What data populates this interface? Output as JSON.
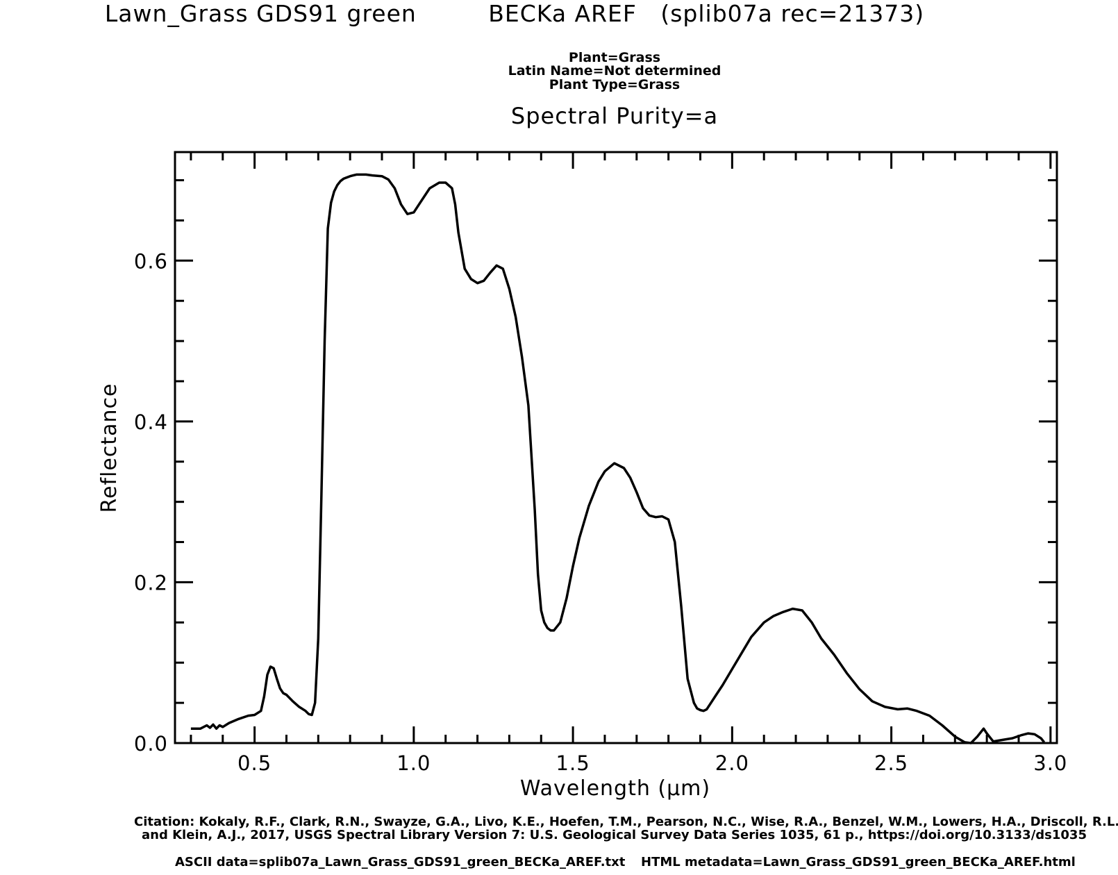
{
  "header": {
    "title": "Lawn_Grass GDS91 green         BECKa AREF   (splib07a rec=21373)",
    "plant": "Plant=Grass",
    "latin_name": "Latin Name=Not determined",
    "plant_type": "Plant Type=Grass",
    "purity": "Spectral Purity=a"
  },
  "footer": {
    "citation_line1": "Citation: Kokaly, R.F., Clark, R.N., Swayze, G.A., Livo, K.E., Hoefen, T.M., Pearson, N.C., Wise, R.A., Benzel, W.M., Lowers, H.A., Driscoll, R.L.,",
    "citation_line2": "and Klein, A.J., 2017, USGS Spectral Library Version 7: U.S. Geological Survey Data Series 1035, 61 p., https://doi.org/10.3133/ds1035",
    "ascii": "ASCII data=splib07a_Lawn_Grass_GDS91_green_BECKa_AREF.txt",
    "html_meta": "HTML metadata=Lawn_Grass_GDS91_green_BECKa_AREF.html"
  },
  "chart_data": {
    "type": "line",
    "xlabel": "Wavelength (μm)",
    "ylabel": "Reflectance",
    "xlim": [
      0.25,
      3.02
    ],
    "ylim": [
      0.0,
      0.735
    ],
    "xticks": [
      0.5,
      1.0,
      1.5,
      2.0,
      2.5,
      3.0
    ],
    "xtick_labels": [
      "0.5",
      "1.0",
      "1.5",
      "2.0",
      "2.5",
      "3.0"
    ],
    "yticks": [
      0.0,
      0.2,
      0.4,
      0.6
    ],
    "ytick_labels": [
      "0.0",
      "0.2",
      "0.4",
      "0.6"
    ],
    "grid": false,
    "line_color": "#000000",
    "series": [
      {
        "x": [
          0.3,
          0.33,
          0.35,
          0.36,
          0.37,
          0.38,
          0.39,
          0.4,
          0.42,
          0.45,
          0.48,
          0.5,
          0.52,
          0.53,
          0.54,
          0.55,
          0.56,
          0.57,
          0.58,
          0.59,
          0.6,
          0.62,
          0.64,
          0.66,
          0.67,
          0.68,
          0.69,
          0.7,
          0.71,
          0.72,
          0.73,
          0.74,
          0.75,
          0.76,
          0.77,
          0.78,
          0.8,
          0.82,
          0.85,
          0.87,
          0.9,
          0.92,
          0.94,
          0.96,
          0.98,
          1.0,
          1.02,
          1.05,
          1.08,
          1.1,
          1.12,
          1.13,
          1.14,
          1.16,
          1.18,
          1.2,
          1.22,
          1.24,
          1.26,
          1.28,
          1.3,
          1.32,
          1.34,
          1.36,
          1.38,
          1.39,
          1.4,
          1.41,
          1.42,
          1.43,
          1.44,
          1.46,
          1.48,
          1.5,
          1.52,
          1.55,
          1.58,
          1.6,
          1.63,
          1.66,
          1.68,
          1.7,
          1.72,
          1.74,
          1.76,
          1.78,
          1.8,
          1.82,
          1.84,
          1.86,
          1.88,
          1.89,
          1.9,
          1.91,
          1.92,
          1.93,
          1.95,
          1.97,
          2.0,
          2.03,
          2.06,
          2.1,
          2.13,
          2.16,
          2.19,
          2.22,
          2.25,
          2.28,
          2.32,
          2.36,
          2.4,
          2.44,
          2.48,
          2.52,
          2.55,
          2.58,
          2.62,
          2.66,
          2.7,
          2.73,
          2.75,
          2.77,
          2.79,
          2.8,
          2.82,
          2.85,
          2.88,
          2.91,
          2.93,
          2.95,
          2.97,
          2.98
        ],
        "y": [
          0.018,
          0.018,
          0.022,
          0.019,
          0.023,
          0.018,
          0.022,
          0.02,
          0.025,
          0.03,
          0.034,
          0.035,
          0.04,
          0.058,
          0.085,
          0.095,
          0.093,
          0.08,
          0.068,
          0.062,
          0.06,
          0.052,
          0.045,
          0.04,
          0.036,
          0.035,
          0.05,
          0.13,
          0.31,
          0.5,
          0.64,
          0.672,
          0.686,
          0.694,
          0.699,
          0.702,
          0.705,
          0.707,
          0.707,
          0.706,
          0.705,
          0.701,
          0.69,
          0.67,
          0.658,
          0.66,
          0.672,
          0.69,
          0.697,
          0.697,
          0.69,
          0.67,
          0.635,
          0.59,
          0.577,
          0.572,
          0.575,
          0.585,
          0.594,
          0.59,
          0.565,
          0.53,
          0.48,
          0.42,
          0.29,
          0.21,
          0.165,
          0.15,
          0.143,
          0.14,
          0.14,
          0.15,
          0.18,
          0.22,
          0.255,
          0.295,
          0.325,
          0.338,
          0.348,
          0.342,
          0.33,
          0.312,
          0.292,
          0.283,
          0.281,
          0.282,
          0.278,
          0.25,
          0.17,
          0.08,
          0.05,
          0.043,
          0.041,
          0.04,
          0.042,
          0.048,
          0.06,
          0.072,
          0.092,
          0.112,
          0.132,
          0.15,
          0.158,
          0.163,
          0.167,
          0.165,
          0.15,
          0.13,
          0.11,
          0.087,
          0.067,
          0.052,
          0.045,
          0.042,
          0.043,
          0.04,
          0.034,
          0.022,
          0.008,
          0.001,
          0.0,
          0.008,
          0.018,
          0.012,
          0.002,
          0.004,
          0.006,
          0.01,
          0.012,
          0.011,
          0.006,
          0.001
        ]
      }
    ]
  }
}
